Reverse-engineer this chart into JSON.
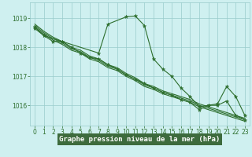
{
  "bg_color": "#cff0f0",
  "plot_bg": "#cff0f0",
  "grid_color": "#99cccc",
  "line_color": "#2d6e2d",
  "xlabel": "Graphe pression niveau de la mer (hPa)",
  "ylim": [
    1015.3,
    1019.55
  ],
  "xlim": [
    -0.5,
    23.5
  ],
  "yticks": [
    1016,
    1017,
    1018,
    1019
  ],
  "xticks": [
    0,
    1,
    2,
    3,
    4,
    5,
    6,
    7,
    8,
    9,
    10,
    11,
    12,
    13,
    14,
    15,
    16,
    17,
    18,
    19,
    20,
    21,
    22,
    23
  ],
  "series": [
    {
      "x": [
        0,
        1,
        2,
        3,
        4,
        5,
        6,
        7,
        8,
        9,
        10,
        11,
        12,
        13,
        14,
        15,
        16,
        17,
        18,
        19,
        20,
        21,
        22,
        23
      ],
      "y": [
        1018.7,
        1018.45,
        1018.25,
        1018.1,
        1017.9,
        1017.8,
        1017.6,
        1017.5,
        1017.3,
        1017.2,
        1017.0,
        1016.85,
        1016.65,
        1016.55,
        1016.4,
        1016.3,
        1016.2,
        1016.1,
        1015.95,
        1015.85,
        1015.75,
        1015.65,
        1015.55,
        1015.45
      ],
      "markers": false
    },
    {
      "x": [
        0,
        1,
        2,
        3,
        4,
        5,
        6,
        7,
        8,
        9,
        10,
        11,
        12,
        13,
        14,
        15,
        16,
        17,
        18,
        19,
        20,
        21,
        22,
        23
      ],
      "y": [
        1018.75,
        1018.5,
        1018.3,
        1018.15,
        1017.95,
        1017.85,
        1017.65,
        1017.55,
        1017.35,
        1017.25,
        1017.05,
        1016.9,
        1016.7,
        1016.6,
        1016.45,
        1016.35,
        1016.25,
        1016.15,
        1016.0,
        1015.9,
        1015.8,
        1015.7,
        1015.6,
        1015.5
      ],
      "markers": false
    },
    {
      "x": [
        0,
        1,
        2,
        3,
        4,
        5,
        6,
        7,
        8,
        9,
        10,
        11,
        12,
        13,
        14,
        15,
        16,
        17,
        18,
        19,
        20,
        21,
        22,
        23
      ],
      "y": [
        1018.8,
        1018.55,
        1018.35,
        1018.2,
        1018.0,
        1017.9,
        1017.7,
        1017.6,
        1017.4,
        1017.3,
        1017.1,
        1016.95,
        1016.75,
        1016.65,
        1016.5,
        1016.4,
        1016.3,
        1016.2,
        1016.05,
        1015.95,
        1015.85,
        1015.75,
        1015.65,
        1015.55
      ],
      "markers": false
    },
    {
      "x": [
        0,
        1,
        3,
        7,
        8,
        10,
        11,
        12,
        13,
        14,
        15,
        16,
        17,
        18,
        19,
        20,
        21,
        22,
        23
      ],
      "y": [
        1018.7,
        1018.4,
        1018.2,
        1017.8,
        1018.8,
        1019.05,
        1019.08,
        1018.75,
        1017.6,
        1017.25,
        1017.0,
        1016.6,
        1016.3,
        1015.95,
        1016.0,
        1016.05,
        1016.65,
        1016.3,
        1015.65
      ],
      "markers": true
    },
    {
      "x": [
        0,
        1,
        2,
        3,
        4,
        5,
        6,
        7,
        8,
        9,
        10,
        11,
        12,
        13,
        14,
        15,
        16,
        17,
        18,
        19,
        20,
        21,
        22,
        23
      ],
      "y": [
        1018.65,
        1018.4,
        1018.2,
        1018.2,
        1018.0,
        1017.8,
        1017.65,
        1017.6,
        1017.4,
        1017.25,
        1017.05,
        1016.9,
        1016.75,
        1016.6,
        1016.45,
        1016.35,
        1016.2,
        1016.1,
        1015.85,
        1016.0,
        1016.0,
        1016.15,
        1015.65,
        1015.5
      ],
      "markers": true
    }
  ],
  "xlabel_bg": "#3d6b3d",
  "xlabel_color": "#ffffff",
  "xlabel_fontsize": 6.5
}
